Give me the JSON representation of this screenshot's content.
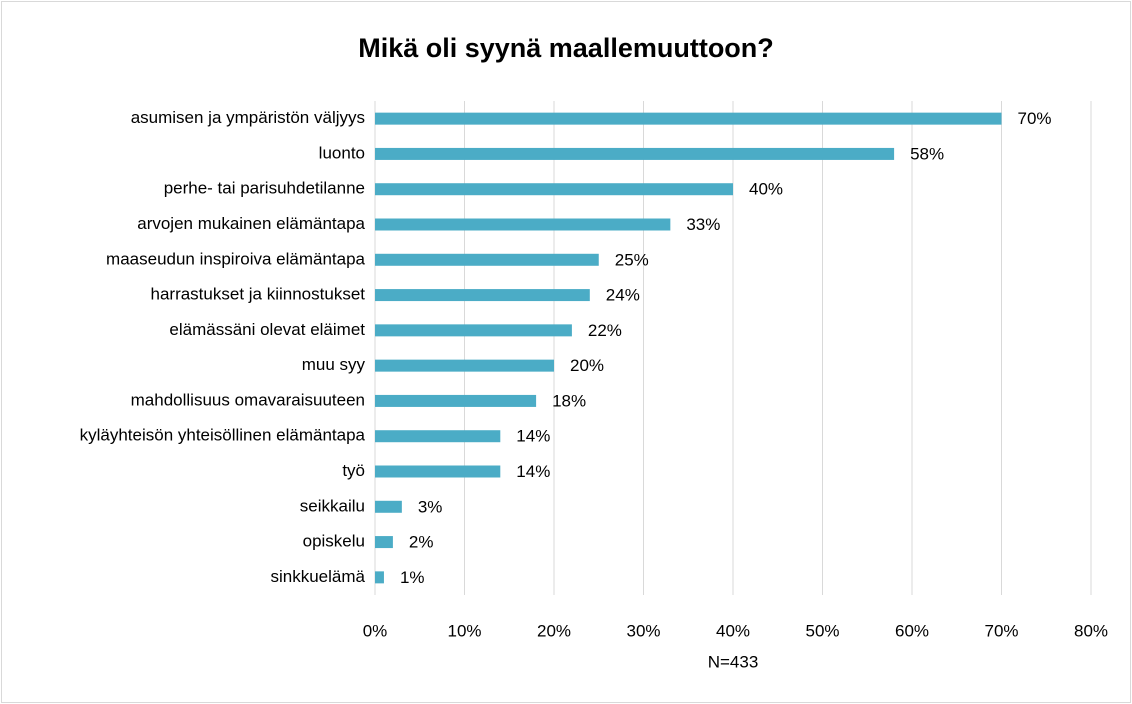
{
  "chart_data": {
    "type": "bar",
    "orientation": "horizontal",
    "title": "Mikä oli syynä maallemuuttoon?",
    "x_label": "N=433",
    "categories": [
      "asumisen ja ympäristön väljyys",
      "luonto",
      "perhe- tai parisuhdetilanne",
      "arvojen mukainen elämäntapa",
      "maaseudun inspiroiva elämäntapa",
      "harrastukset ja kiinnostukset",
      "elämässäni olevat eläimet",
      "muu syy",
      "mahdollisuus omavaraisuuteen",
      "kyläyhteisön yhteisöllinen elämäntapa",
      "työ",
      "seikkailu",
      "opiskelu",
      "sinkkuelämä"
    ],
    "values": [
      70,
      58,
      40,
      33,
      25,
      24,
      22,
      20,
      18,
      14,
      14,
      3,
      2,
      1
    ],
    "value_labels": [
      "70%",
      "58%",
      "40%",
      "33%",
      "25%",
      "24%",
      "22%",
      "20%",
      "18%",
      "14%",
      "14%",
      "3%",
      "2%",
      "1%"
    ],
    "color": "#4bacc6",
    "xlim": [
      0,
      80
    ],
    "xticks": [
      {
        "value": 0,
        "label": "0%"
      },
      {
        "value": 10,
        "label": "10%"
      },
      {
        "value": 20,
        "label": "20%"
      },
      {
        "value": 30,
        "label": "30%"
      },
      {
        "value": 40,
        "label": "40%"
      },
      {
        "value": 50,
        "label": "50%"
      },
      {
        "value": 60,
        "label": "60%"
      },
      {
        "value": 70,
        "label": "70%"
      },
      {
        "value": 80,
        "label": "80%"
      }
    ],
    "grid": true
  }
}
